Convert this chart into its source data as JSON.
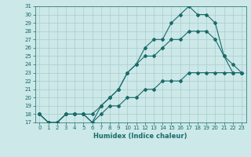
{
  "xlabel": "Humidex (Indice chaleur)",
  "ylabel": "",
  "bg_color": "#cce8e8",
  "line_color": "#1a6b6b",
  "grid_color": "#aacccc",
  "xlim": [
    -0.5,
    23.5
  ],
  "ylim": [
    17,
    31
  ],
  "x_ticks": [
    0,
    1,
    2,
    3,
    4,
    5,
    6,
    7,
    8,
    9,
    10,
    11,
    12,
    13,
    14,
    15,
    16,
    17,
    18,
    19,
    20,
    21,
    22,
    23
  ],
  "y_ticks": [
    17,
    18,
    19,
    20,
    21,
    22,
    23,
    24,
    25,
    26,
    27,
    28,
    29,
    30,
    31
  ],
  "line1_x": [
    0,
    1,
    2,
    3,
    4,
    5,
    6,
    7,
    8,
    9,
    10,
    11,
    12,
    13,
    14,
    15,
    16,
    17,
    18,
    19,
    20,
    21,
    22,
    23
  ],
  "line1_y": [
    18,
    17,
    17,
    18,
    18,
    18,
    17,
    19,
    20,
    21,
    23,
    24,
    26,
    27,
    27,
    29,
    30,
    31,
    30,
    30,
    29,
    25,
    23,
    23
  ],
  "line2_x": [
    0,
    1,
    2,
    3,
    4,
    5,
    6,
    7,
    8,
    9,
    10,
    11,
    12,
    13,
    14,
    15,
    16,
    17,
    18,
    19,
    20,
    21,
    22,
    23
  ],
  "line2_y": [
    18,
    17,
    17,
    18,
    18,
    18,
    18,
    19,
    20,
    21,
    23,
    24,
    25,
    25,
    26,
    27,
    27,
    28,
    28,
    28,
    27,
    25,
    24,
    23
  ],
  "line3_x": [
    0,
    1,
    2,
    3,
    4,
    5,
    6,
    7,
    8,
    9,
    10,
    11,
    12,
    13,
    14,
    15,
    16,
    17,
    18,
    19,
    20,
    21,
    22,
    23
  ],
  "line3_y": [
    18,
    17,
    17,
    18,
    18,
    18,
    17,
    18,
    19,
    19,
    20,
    20,
    21,
    21,
    22,
    22,
    22,
    23,
    23,
    23,
    23,
    23,
    23,
    23
  ],
  "tick_fontsize": 5,
  "xlabel_fontsize": 6
}
